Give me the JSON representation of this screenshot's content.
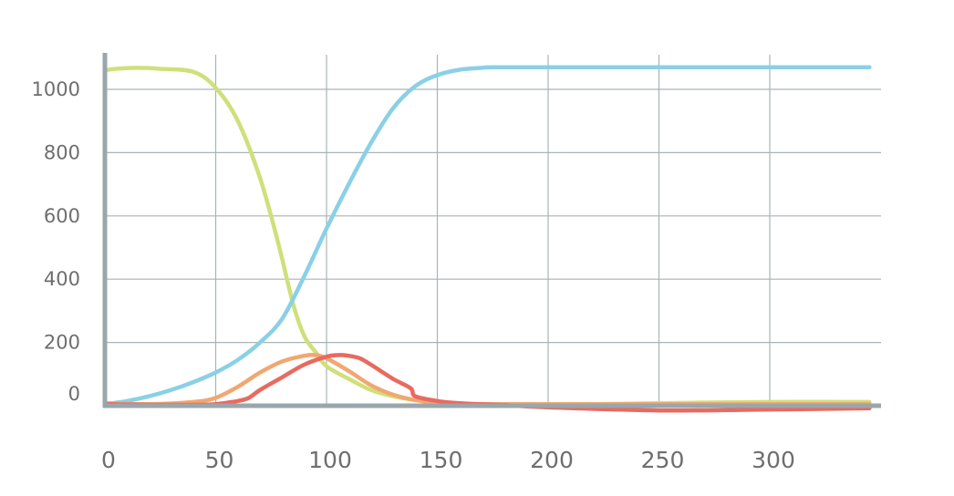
{
  "chart_data": {
    "type": "line",
    "title": "",
    "xlabel": "",
    "ylabel": "",
    "xlim": [
      0,
      350
    ],
    "ylim": [
      0,
      1100
    ],
    "x_ticks": [
      0,
      50,
      100,
      150,
      200,
      250,
      300
    ],
    "x_tick_labels": [
      "0",
      "50",
      "100",
      "150",
      "200",
      "250",
      "300"
    ],
    "y_ticks": [
      0,
      200,
      400,
      600,
      800,
      1000
    ],
    "y_tick_labels": [
      "0",
      "200",
      "400",
      "600",
      "800",
      "1000"
    ],
    "grid": true,
    "legend": "none",
    "series": [
      {
        "color": "#cfe07a",
        "x": [
          0,
          5,
          15,
          25,
          40,
          50,
          60,
          70,
          78,
          85,
          90,
          95,
          100,
          110,
          120,
          130,
          140,
          150,
          160,
          175,
          200,
          250,
          300,
          345
        ],
        "y": [
          1060,
          1065,
          1068,
          1065,
          1055,
          1005,
          900,
          720,
          520,
          320,
          220,
          170,
          125,
          85,
          50,
          30,
          18,
          10,
          5,
          2,
          3,
          8,
          12,
          12
        ]
      },
      {
        "color": "#8ad0e6",
        "x": [
          0,
          10,
          20,
          30,
          40,
          50,
          60,
          70,
          80,
          90,
          100,
          110,
          120,
          130,
          140,
          150,
          160,
          170,
          175,
          200,
          250,
          300,
          345
        ],
        "y": [
          5,
          15,
          30,
          50,
          75,
          105,
          145,
          200,
          275,
          410,
          560,
          700,
          830,
          940,
          1010,
          1045,
          1062,
          1068,
          1070,
          1070,
          1070,
          1070,
          1070
        ]
      },
      {
        "color": "#f0a870",
        "x": [
          0,
          20,
          40,
          50,
          60,
          70,
          80,
          90,
          95,
          100,
          110,
          120,
          130,
          140,
          150,
          160,
          180,
          200,
          250,
          300,
          345
        ],
        "y": [
          8,
          5,
          12,
          25,
          60,
          105,
          140,
          158,
          160,
          150,
          110,
          65,
          35,
          18,
          10,
          6,
          5,
          5,
          5,
          5,
          5
        ]
      },
      {
        "color": "#e86a60",
        "x": [
          0,
          20,
          40,
          50,
          60,
          65,
          70,
          80,
          90,
          100,
          105,
          110,
          115,
          120,
          130,
          138,
          140,
          150,
          160,
          180,
          200,
          250,
          300,
          345
        ],
        "y": [
          5,
          3,
          3,
          5,
          15,
          25,
          50,
          90,
          130,
          155,
          160,
          158,
          150,
          130,
          85,
          55,
          30,
          15,
          8,
          2,
          -5,
          -15,
          -12,
          -8
        ]
      }
    ]
  }
}
